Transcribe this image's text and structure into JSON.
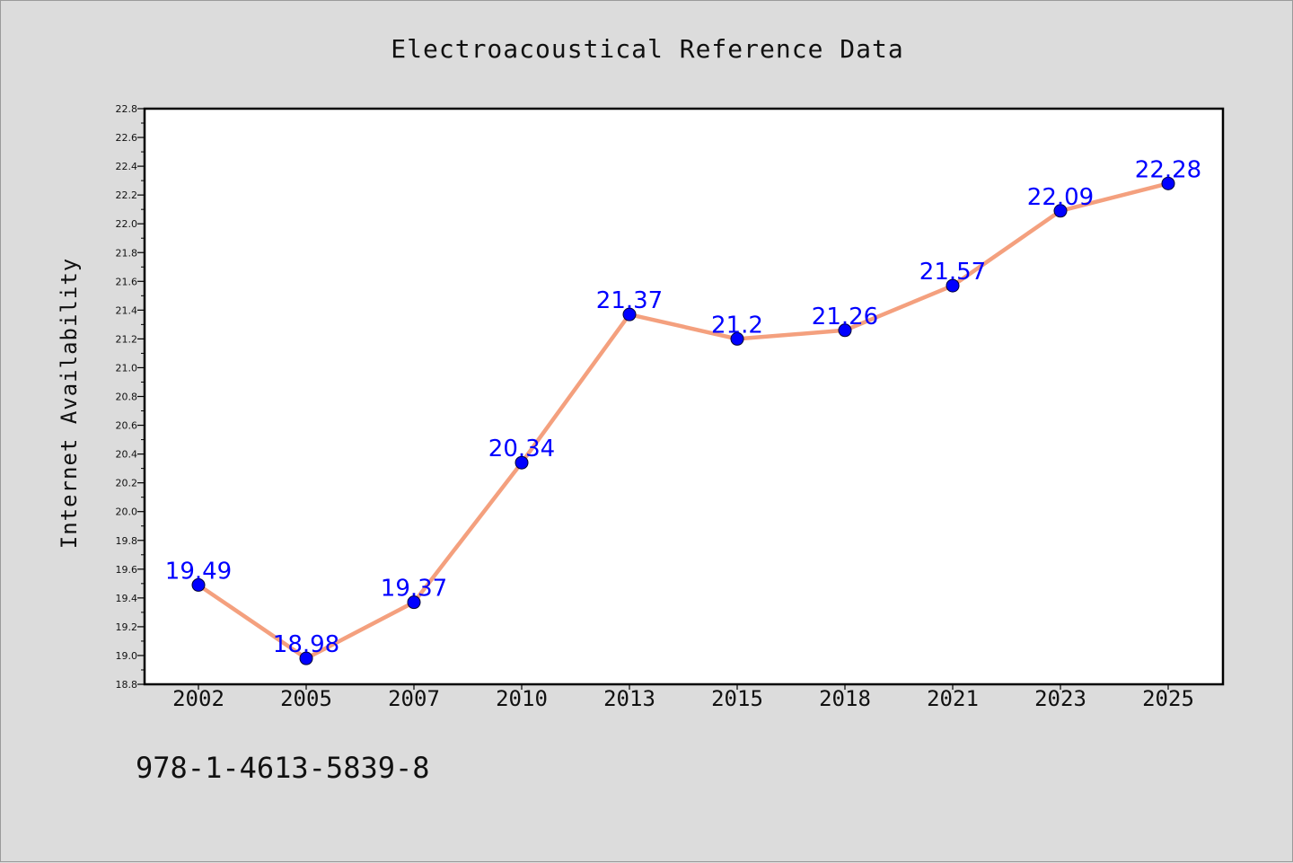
{
  "chart_data": {
    "type": "line",
    "title": "Electroacoustical Reference Data",
    "xlabel": "",
    "ylabel": "Internet Availability",
    "categories": [
      "2002",
      "2005",
      "2007",
      "2010",
      "2013",
      "2015",
      "2018",
      "2021",
      "2023",
      "2025"
    ],
    "values": [
      19.49,
      18.98,
      19.37,
      20.34,
      21.37,
      21.2,
      21.26,
      21.57,
      22.09,
      22.28
    ],
    "data_labels": [
      "19.49",
      "18.98",
      "19.37",
      "20.34",
      "21.37",
      "21.2",
      "21.26",
      "21.57",
      "22.09",
      "22.28"
    ],
    "ylim": [
      18.8,
      22.8
    ],
    "yticks": [
      "18.8",
      "19.0",
      "19.2",
      "19.4",
      "19.6",
      "19.8",
      "20.0",
      "20.2",
      "20.4",
      "20.6",
      "20.8",
      "21.0",
      "21.2",
      "21.4",
      "21.6",
      "21.8",
      "22.0",
      "22.2",
      "22.4",
      "22.6",
      "22.8"
    ],
    "grid": false,
    "colors": {
      "line": "#f4a07e",
      "marker_fill": "#0000ff",
      "marker_edge": "#000033",
      "label": "#0000ff",
      "background": "#dcdcdc",
      "plot_background": "#ffffff"
    }
  },
  "footnote": "978-1-4613-5839-8"
}
